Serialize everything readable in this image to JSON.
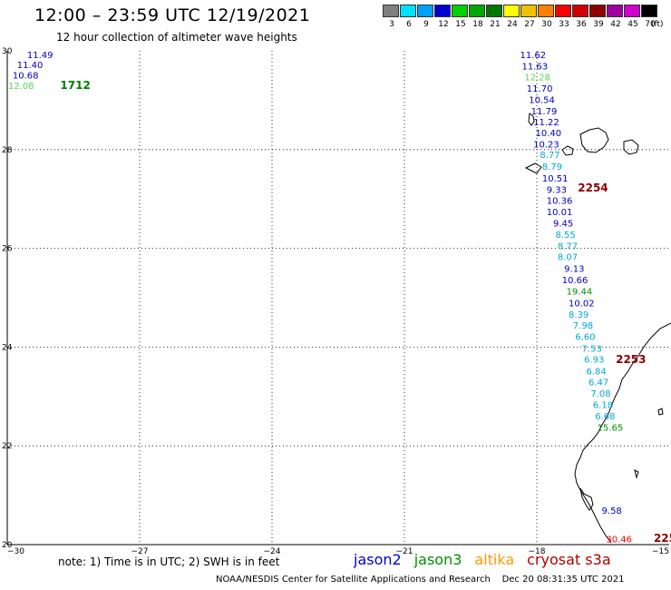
{
  "header": {
    "title": "12:00 – 23:59 UTC 12/19/2021",
    "subtitle": "12 hour collection of altimeter wave heights"
  },
  "scale": {
    "unit": "(ft)",
    "bins": [
      {
        "label": "3",
        "color": "#808080"
      },
      {
        "label": "6",
        "color": "#00e0ff"
      },
      {
        "label": "9",
        "color": "#00a0ff"
      },
      {
        "label": "12",
        "color": "#0000d0"
      },
      {
        "label": "15",
        "color": "#00d000"
      },
      {
        "label": "18",
        "color": "#00a800"
      },
      {
        "label": "21",
        "color": "#007800"
      },
      {
        "label": "24",
        "color": "#ffff00"
      },
      {
        "label": "27",
        "color": "#f0c000"
      },
      {
        "label": "30",
        "color": "#ff8000"
      },
      {
        "label": "33",
        "color": "#ff0000"
      },
      {
        "label": "36",
        "color": "#d00000"
      },
      {
        "label": "39",
        "color": "#900000"
      },
      {
        "label": "42",
        "color": "#a000a0"
      },
      {
        "label": "45",
        "color": "#d000d0"
      },
      {
        "label": "70",
        "color": "#000000"
      }
    ]
  },
  "axes": {
    "lon_labels": [
      "−30",
      "−27",
      "−24",
      "−21",
      "−18",
      "−15"
    ],
    "lat_labels": [
      "30",
      "28",
      "26",
      "24",
      "22",
      "20"
    ]
  },
  "observations": [
    {
      "text": "11.49",
      "lon": -29.55,
      "lat": 29.93,
      "color": "#0000c0"
    },
    {
      "text": "11.40",
      "lon": -29.78,
      "lat": 29.72,
      "color": "#0000c0"
    },
    {
      "text": "10.68",
      "lon": -29.88,
      "lat": 29.51,
      "color": "#0000c0"
    },
    {
      "text": "12.08",
      "lon": -29.98,
      "lat": 29.3,
      "color": "#55d855"
    },
    {
      "text": "11.62",
      "lon": -18.38,
      "lat": 29.93,
      "color": "#0000c0"
    },
    {
      "text": "11.63",
      "lon": -18.34,
      "lat": 29.7,
      "color": "#0000c0"
    },
    {
      "text": "12.28",
      "lon": -18.28,
      "lat": 29.48,
      "color": "#55d855"
    },
    {
      "text": "11.70",
      "lon": -18.23,
      "lat": 29.25,
      "color": "#0000c0"
    },
    {
      "text": "10.54",
      "lon": -18.18,
      "lat": 29.02,
      "color": "#0000c0"
    },
    {
      "text": "11.79",
      "lon": -18.13,
      "lat": 28.79,
      "color": "#0000c0"
    },
    {
      "text": "11.22",
      "lon": -18.08,
      "lat": 28.57,
      "color": "#0000c0"
    },
    {
      "text": "10.40",
      "lon": -18.03,
      "lat": 28.35,
      "color": "#0000c0"
    },
    {
      "text": "10.23",
      "lon": -18.08,
      "lat": 28.12,
      "color": "#0000c0"
    },
    {
      "text": "8.77",
      "lon": -17.93,
      "lat": 27.9,
      "color": "#00a8d8"
    },
    {
      "text": "8.79",
      "lon": -17.88,
      "lat": 27.67,
      "color": "#00a8d8"
    },
    {
      "text": "10.51",
      "lon": -17.88,
      "lat": 27.43,
      "color": "#0000c0"
    },
    {
      "text": "9.33",
      "lon": -17.78,
      "lat": 27.2,
      "color": "#0000c0"
    },
    {
      "text": "10.36",
      "lon": -17.78,
      "lat": 26.98,
      "color": "#0000c0"
    },
    {
      "text": "10.01",
      "lon": -17.78,
      "lat": 26.75,
      "color": "#0000c0"
    },
    {
      "text": "9.45",
      "lon": -17.63,
      "lat": 26.52,
      "color": "#0000c0"
    },
    {
      "text": "8.55",
      "lon": -17.58,
      "lat": 26.29,
      "color": "#00a8d8"
    },
    {
      "text": "8.77",
      "lon": -17.53,
      "lat": 26.06,
      "color": "#00a8d8"
    },
    {
      "text": "8.07",
      "lon": -17.53,
      "lat": 25.84,
      "color": "#00a8d8"
    },
    {
      "text": "9.13",
      "lon": -17.38,
      "lat": 25.6,
      "color": "#0000c0"
    },
    {
      "text": "10.66",
      "lon": -17.43,
      "lat": 25.37,
      "color": "#0000c0"
    },
    {
      "text": "19.44",
      "lon": -17.33,
      "lat": 25.14,
      "color": "#009000"
    },
    {
      "text": "10.02",
      "lon": -17.28,
      "lat": 24.9,
      "color": "#0000c0"
    },
    {
      "text": "8.39",
      "lon": -17.28,
      "lat": 24.67,
      "color": "#00a8d8"
    },
    {
      "text": "7.98",
      "lon": -17.18,
      "lat": 24.45,
      "color": "#00a8d8"
    },
    {
      "text": "6.60",
      "lon": -17.13,
      "lat": 24.22,
      "color": "#00a8d8"
    },
    {
      "text": "7.53",
      "lon": -16.98,
      "lat": 23.98,
      "color": "#00a8d8"
    },
    {
      "text": "6.93",
      "lon": -16.93,
      "lat": 23.76,
      "color": "#00a8d8"
    },
    {
      "text": "6.84",
      "lon": -16.88,
      "lat": 23.52,
      "color": "#00a8d8"
    },
    {
      "text": "6.47",
      "lon": -16.83,
      "lat": 23.3,
      "color": "#00a8d8"
    },
    {
      "text": "7.08",
      "lon": -16.78,
      "lat": 23.07,
      "color": "#00a8d8"
    },
    {
      "text": "6.18",
      "lon": -16.73,
      "lat": 22.84,
      "color": "#00a8d8"
    },
    {
      "text": "6.68",
      "lon": -16.68,
      "lat": 22.61,
      "color": "#00a8d8"
    },
    {
      "text": "15.65",
      "lon": -16.63,
      "lat": 22.38,
      "color": "#009000"
    },
    {
      "text": "9.58",
      "lon": -16.53,
      "lat": 20.7,
      "color": "#0000c0"
    },
    {
      "text": "30.46",
      "lon": -16.43,
      "lat": 20.12,
      "color": "#ff0000"
    }
  ],
  "time_labels": [
    {
      "text": "1712",
      "lon": -28.8,
      "lat": 29.3,
      "color": "#008000"
    },
    {
      "text": "2254",
      "lon": -17.07,
      "lat": 27.22,
      "color": "#8b0000"
    },
    {
      "text": "2253",
      "lon": -16.21,
      "lat": 23.75,
      "color": "#8b0000"
    },
    {
      "text": "225",
      "lon": -15.35,
      "lat": 20.13,
      "color": "#8b0000"
    }
  ],
  "note": "note: 1) Time is in UTC; 2) SWH is in feet",
  "legend": [
    {
      "name": "jason2",
      "color": "#0000d0"
    },
    {
      "name": "jason3",
      "color": "#009000"
    },
    {
      "name": "altika",
      "color": "#ff9900"
    },
    {
      "name": "cryosat s3a",
      "color": "#b00000"
    }
  ],
  "footer": "NOAA/NESDIS Center for Satellite Applications and Research    Dec 20 08:31:35 UTC 2021"
}
